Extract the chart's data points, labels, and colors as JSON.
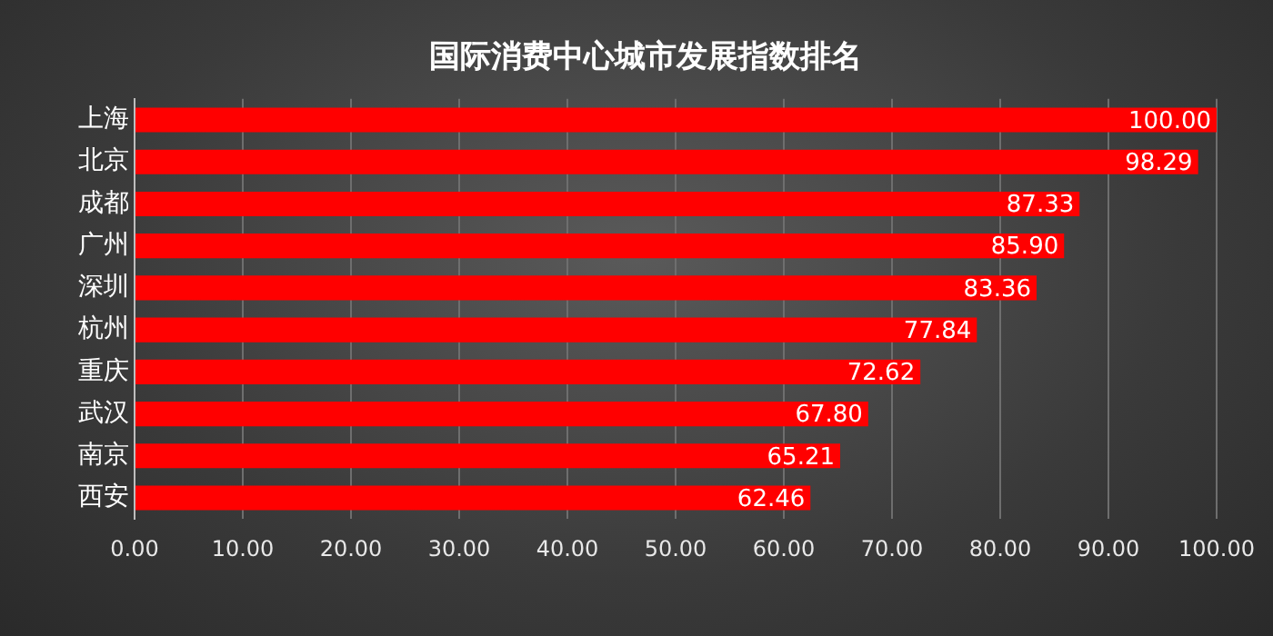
{
  "chart_data": {
    "type": "bar",
    "orientation": "horizontal",
    "title": "国际消费中心城市发展指数排名",
    "categories": [
      "上海",
      "北京",
      "成都",
      "广州",
      "深圳",
      "杭州",
      "重庆",
      "武汉",
      "南京",
      "西安"
    ],
    "values": [
      100,
      98.29,
      87.33,
      85.9,
      83.36,
      77.84,
      72.62,
      67.8,
      65.21,
      62.46
    ],
    "value_labels": [
      "100.00",
      "98.29",
      "87.33",
      "85.90",
      "83.36",
      "77.84",
      "72.62",
      "67.80",
      "65.21",
      "62.46"
    ],
    "color": "#ff0000",
    "xlim": [
      0,
      100
    ],
    "xticks": [
      {
        "value": 0,
        "label": "0.00"
      },
      {
        "value": 10,
        "label": "10.00"
      },
      {
        "value": 20,
        "label": "20.00"
      },
      {
        "value": 30,
        "label": "30.00"
      },
      {
        "value": 40,
        "label": "40.00"
      },
      {
        "value": 50,
        "label": "50.00"
      },
      {
        "value": 60,
        "label": "60.00"
      },
      {
        "value": 70,
        "label": "70.00"
      },
      {
        "value": 80,
        "label": "80.00"
      },
      {
        "value": 90,
        "label": "90.00"
      },
      {
        "value": 100,
        "label": "100.00"
      }
    ],
    "grid": "x"
  }
}
